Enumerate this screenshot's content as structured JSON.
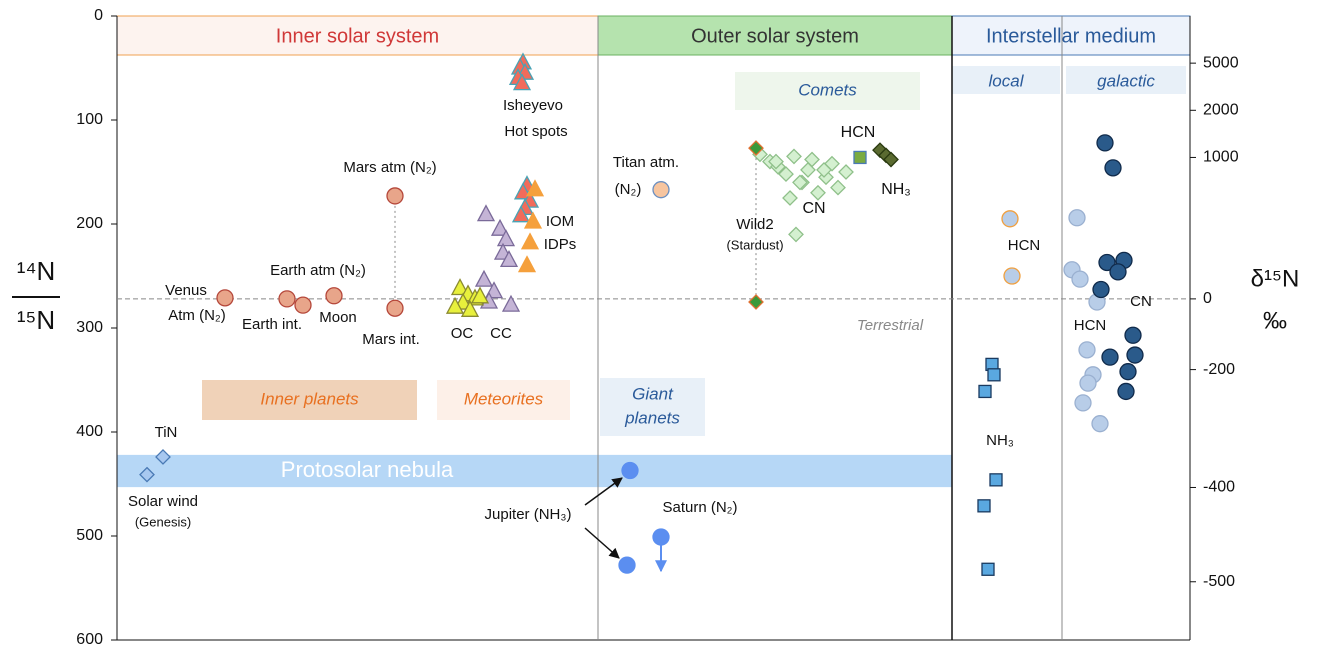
{
  "chart_data": {
    "type": "scatter",
    "ylabel": {
      "numerator": "¹⁴N",
      "denominator": "¹⁵N"
    },
    "y2label": {
      "top": "δ¹⁵N",
      "bottom": "‰"
    },
    "ylim": [
      0,
      600
    ],
    "yticks": [
      0,
      100,
      200,
      300,
      400,
      500,
      600
    ],
    "y2ticks": [
      5000,
      2000,
      1000,
      0,
      -200,
      -400,
      -500
    ],
    "inverted": true,
    "reference": {
      "value": 272,
      "label": "Terrestrial"
    },
    "band": {
      "label": "Protosolar nebula",
      "range": [
        422,
        453
      ],
      "color": "#a9d0f5"
    },
    "panels": [
      "Inner solar system",
      "Outer solar system",
      "Interstellar medium"
    ],
    "subpanels": [
      "local",
      "galactic"
    ],
    "regions": [
      [
        "Inner planets"
      ],
      [
        "Meteorites"
      ],
      [
        "Giant",
        "planets"
      ],
      [
        "Comets"
      ]
    ],
    "groups": [
      {
        "marker": "circle",
        "color": "#e8a58a",
        "stroke": "#b5473a",
        "values": [
          271,
          272,
          278,
          269,
          173,
          281
        ]
      },
      {
        "marker": "triangle",
        "color": "#f26b5b",
        "stroke": "#4aa3b5",
        "values": [
          45,
          50,
          55,
          60,
          65,
          163,
          170,
          178,
          185,
          192
        ]
      },
      {
        "marker": "triangle",
        "color": "#f5a03c",
        "stroke": "#f5a03c",
        "values": [
          167,
          198,
          218,
          240
        ]
      },
      {
        "marker": "triangle",
        "color": "#c4b4d6",
        "stroke": "#7a6a99",
        "values": [
          191,
          205,
          215,
          228,
          235,
          254,
          265,
          278,
          275
        ]
      },
      {
        "marker": "triangle",
        "color": "#e8f03c",
        "stroke": "#8a8a30",
        "values": [
          262,
          268,
          272,
          276,
          280,
          283,
          270
        ]
      },
      {
        "marker": "diamond",
        "color": "#a8c8f0",
        "stroke": "#4a7ab5",
        "values": [
          441,
          424
        ]
      },
      {
        "marker": "circle",
        "color": "#f7c59f",
        "stroke": "#6b8fc0",
        "values": [
          167
        ]
      },
      {
        "marker": "diamond",
        "color": "#d4f0d0",
        "stroke": "#8fc08a",
        "values": [
          140,
          145,
          152,
          135,
          160,
          148,
          138,
          170,
          155,
          142,
          165,
          150,
          210,
          175,
          160,
          148,
          140,
          133
        ]
      },
      {
        "marker": "diamond",
        "color": "#3a9a3a",
        "stroke": "#e07030",
        "values": [
          127,
          275
        ]
      },
      {
        "marker": "square",
        "color": "#7aaa40",
        "stroke": "#4a7ab5",
        "values": [
          136
        ]
      },
      {
        "marker": "diamond",
        "color": "#5a6a30",
        "stroke": "#2a3a10",
        "values": [
          129,
          134,
          138
        ]
      },
      {
        "marker": "circle",
        "color": "#5b8ef0",
        "stroke": "#5b8ef0",
        "values": [
          437,
          528
        ]
      },
      {
        "marker": "circle",
        "color": "#5b8ef0",
        "stroke": "#5b8ef0",
        "values": [
          501
        ]
      },
      {
        "marker": "circle",
        "color": "#b8cde8",
        "stroke": "#f0a040",
        "values": [
          195,
          250
        ]
      },
      {
        "marker": "square",
        "color": "#5aa8e0",
        "stroke": "#1a3a60",
        "values": [
          335,
          345,
          361,
          446,
          471,
          532
        ]
      },
      {
        "marker": "circle",
        "color": "#b8cde8",
        "stroke": "#9ab0d0",
        "values": [
          194,
          244,
          253,
          275,
          321,
          345,
          353,
          372,
          392
        ]
      },
      {
        "marker": "circle",
        "color": "#2a5a8a",
        "stroke": "#102a4a",
        "values": [
          122,
          146,
          237,
          235,
          246,
          263,
          307,
          328,
          326,
          342,
          361
        ]
      }
    ],
    "annotations": [
      "Venus",
      "Atm (N₂)",
      "Earth atm (N₂)",
      "Earth int.",
      "Moon",
      "Mars atm (N₂)",
      "Mars int.",
      "Isheyevo",
      "Hot spots",
      "IOM",
      "IDPs",
      "OC",
      "CC",
      "TiN",
      "Solar wind",
      "(Genesis)",
      "Titan atm.",
      "(N₂)",
      "Wild2",
      "(Stardust)",
      "HCN",
      "CN",
      "NH₃",
      "Jupiter (NH₃)",
      "Saturn (N₂)",
      "HCN",
      "NH₃",
      "HCN",
      "CN"
    ]
  }
}
